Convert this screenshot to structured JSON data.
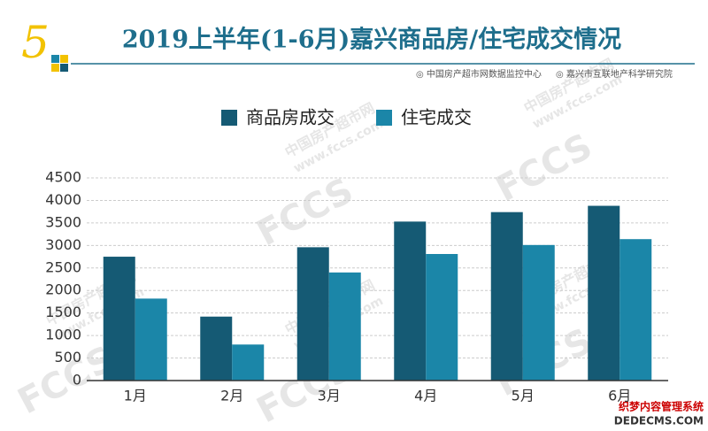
{
  "header": {
    "badge": "5",
    "title": "2019上半年(1-6月)嘉兴商品房/住宅成交情况",
    "sources": [
      "◎ 中国房产超市网数据监控中心",
      "◎ 嘉兴市互联地产科学研究院"
    ]
  },
  "watermarks": [
    "FCCS",
    "中国房产超市网",
    "www.fccs.com",
    "织梦内容管理系统",
    "DEDECMS.COM"
  ],
  "chart_data": {
    "type": "bar",
    "categories": [
      "1月",
      "2月",
      "3月",
      "4月",
      "5月",
      "6月"
    ],
    "series": [
      {
        "name": "商品房成交",
        "color": "#155a74",
        "values": [
          2750,
          1420,
          2960,
          3530,
          3740,
          3880
        ]
      },
      {
        "name": "住宅成交",
        "color": "#1b86a8",
        "values": [
          1820,
          800,
          2400,
          2810,
          3010,
          3140
        ]
      }
    ],
    "ylim": [
      0,
      4500
    ],
    "yticks": [
      0,
      500,
      1000,
      1500,
      2000,
      2500,
      3000,
      3500,
      4000,
      4500
    ],
    "grid": true,
    "legend": "top"
  }
}
